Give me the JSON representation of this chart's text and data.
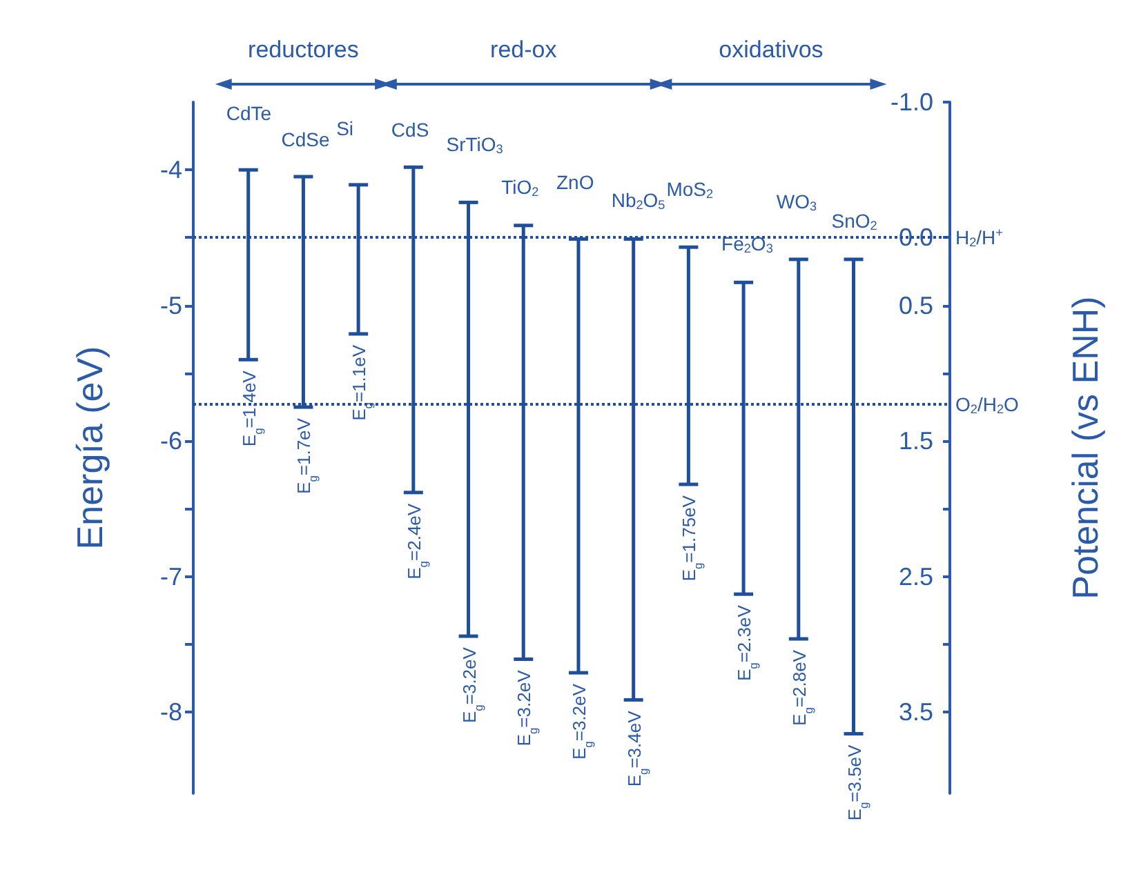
{
  "chart_data": {
    "type": "bar",
    "ylabel": "Energía (eV)",
    "y2label": "Potencial (vs ENH)",
    "annotations": [
      "reductores",
      "red-ox",
      "oxidativos"
    ],
    "categories": [
      "CdTe",
      "CdSe",
      "Si",
      "CdS",
      "SrTiO$_{3}$",
      "TiO$_{2}$",
      "ZnO",
      "Nb$_{2}$O$_{5}$",
      "MoS$_{2}$",
      "Fe$_{2}$O$_{3}$",
      "WO$_{3}$",
      "SnO$_{2}$"
    ],
    "base": [
      -4.0,
      -4.05,
      -4.11,
      -3.98,
      -4.24,
      -4.41,
      -4.51,
      -4.51,
      -4.57,
      -4.83,
      -4.66,
      -4.66
    ],
    "values": [
      -1.4,
      -1.7,
      -1.1,
      -2.4,
      -3.2,
      -3.2,
      -3.2,
      -3.4,
      -1.75,
      -2.3,
      -2.8,
      -3.5
    ],
    "value_labels": [
      "E$_{g}$=1.4eV",
      "E$_{g}$=1.7eV",
      "E$_{g}$=1.1eV",
      "E$_{g}$=2.4eV",
      "E$_{g}$=3.2eV",
      "E$_{g}$=3.2eV",
      "E$_{g}$=3.2eV",
      "E$_{g}$=3.4eV",
      "E$_{g}$=1.75eV",
      "E$_{g}$=2.3eV",
      "E$_{g}$=2.8eV",
      "E$_{g}$=3.5eV"
    ],
    "color": "#1f4e9a",
    "ylim": [
      -8.6,
      -3.5
    ],
    "yticks": [
      -4,
      {
        "value": -4.5,
        "label": null
      },
      -5,
      {
        "value": -5.5,
        "label": null
      },
      -6,
      {
        "value": -6.5,
        "label": null
      },
      -7,
      {
        "value": -7.5,
        "label": null
      },
      -8
    ],
    "y2lim": [
      4.1,
      -1.0
    ],
    "y2ticks": [
      {
        "value": -1.0,
        "label": "-1.0"
      },
      {
        "value": 0,
        "label": "0.0"
      },
      0.5,
      {
        "value": 1.0,
        "label": null
      },
      1.5,
      {
        "value": 2.0,
        "label": null
      },
      2.5,
      {
        "value": 3.0,
        "label": null
      },
      3.5
    ],
    "ref_lines": [
      {
        "axis": "y",
        "value": -4.5,
        "label": "H$_{2}$/H$^{+}$",
        "line_style": "dotted",
        "color": "#1f4e9a"
      },
      {
        "axis": "y",
        "value": -5.73,
        "label": "O$_{2}$/H$_{2}$O",
        "line_style": "dotted",
        "color": "#1f4e9a"
      }
    ],
    "tick_labels": "y",
    "grid": false
  }
}
